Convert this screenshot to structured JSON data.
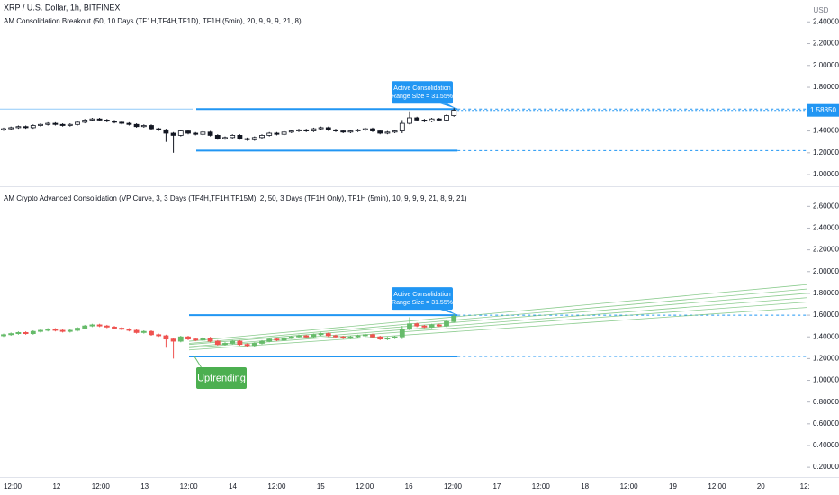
{
  "chart_data": [
    {
      "type": "candlestick",
      "title": "XRP / U.S. Dollar, 1h, BITFINEX",
      "indicator": "AM Consolidation Breakout (50, 10 Days (TF1H,TF4H,TF1D), TF1H (5min), 20, 9, 9, 9, 21, 8)",
      "currency": "USD",
      "open": [
        1.41,
        1.42,
        1.43,
        1.44,
        1.43,
        1.45,
        1.46,
        1.47,
        1.46,
        1.45,
        1.46,
        1.48,
        1.5,
        1.51,
        1.5,
        1.49,
        1.48,
        1.47,
        1.46,
        1.44,
        1.45,
        1.42,
        1.41,
        1.38,
        1.36,
        1.4,
        1.38,
        1.37,
        1.39,
        1.36,
        1.33,
        1.34,
        1.36,
        1.33,
        1.32,
        1.34,
        1.36,
        1.38,
        1.37,
        1.39,
        1.4,
        1.41,
        1.4,
        1.42,
        1.43,
        1.41,
        1.4,
        1.39,
        1.4,
        1.41,
        1.42,
        1.4,
        1.38,
        1.39,
        1.4,
        1.47,
        1.52,
        1.5,
        1.49,
        1.51,
        1.5,
        1.54
      ],
      "high": [
        1.43,
        1.44,
        1.45,
        1.45,
        1.46,
        1.47,
        1.48,
        1.48,
        1.47,
        1.47,
        1.49,
        1.51,
        1.52,
        1.52,
        1.51,
        1.5,
        1.49,
        1.48,
        1.47,
        1.46,
        1.46,
        1.43,
        1.42,
        1.39,
        1.41,
        1.41,
        1.39,
        1.4,
        1.4,
        1.37,
        1.35,
        1.37,
        1.37,
        1.34,
        1.35,
        1.37,
        1.39,
        1.39,
        1.4,
        1.41,
        1.42,
        1.42,
        1.43,
        1.44,
        1.44,
        1.42,
        1.41,
        1.41,
        1.42,
        1.43,
        1.43,
        1.41,
        1.4,
        1.41,
        1.5,
        1.58,
        1.53,
        1.51,
        1.52,
        1.52,
        1.55,
        1.61
      ],
      "low": [
        1.4,
        1.41,
        1.42,
        1.42,
        1.42,
        1.44,
        1.45,
        1.45,
        1.44,
        1.44,
        1.45,
        1.47,
        1.49,
        1.49,
        1.48,
        1.47,
        1.46,
        1.45,
        1.43,
        1.43,
        1.41,
        1.4,
        1.3,
        1.2,
        1.35,
        1.37,
        1.36,
        1.36,
        1.35,
        1.32,
        1.32,
        1.33,
        1.32,
        1.31,
        1.31,
        1.33,
        1.35,
        1.36,
        1.36,
        1.38,
        1.39,
        1.39,
        1.39,
        1.41,
        1.4,
        1.39,
        1.38,
        1.38,
        1.39,
        1.4,
        1.39,
        1.37,
        1.37,
        1.38,
        1.38,
        1.46,
        1.49,
        1.48,
        1.48,
        1.49,
        1.49,
        1.53
      ],
      "close": [
        1.42,
        1.43,
        1.44,
        1.43,
        1.45,
        1.46,
        1.47,
        1.46,
        1.45,
        1.46,
        1.48,
        1.5,
        1.51,
        1.5,
        1.49,
        1.48,
        1.47,
        1.46,
        1.44,
        1.45,
        1.42,
        1.41,
        1.38,
        1.36,
        1.4,
        1.38,
        1.37,
        1.39,
        1.36,
        1.33,
        1.34,
        1.36,
        1.33,
        1.32,
        1.34,
        1.36,
        1.38,
        1.37,
        1.39,
        1.4,
        1.41,
        1.4,
        1.42,
        1.43,
        1.41,
        1.4,
        1.39,
        1.4,
        1.41,
        1.42,
        1.4,
        1.38,
        1.39,
        1.4,
        1.47,
        1.52,
        1.5,
        1.49,
        1.51,
        1.5,
        1.54,
        1.59
      ],
      "up_color": "#ffffff",
      "down_color": "#131722",
      "ylim": [
        0.91,
        2.6
      ],
      "yticks": [
        {
          "value": 1.0,
          "label": "1.00000"
        },
        {
          "value": 1.2,
          "label": "1.20000"
        },
        {
          "value": 1.4,
          "label": "1.40000"
        },
        {
          "value": 1.8,
          "label": "1.80000"
        },
        {
          "value": 2.0,
          "label": "2.00000"
        },
        {
          "value": 2.2,
          "label": "2.20000"
        },
        {
          "value": 2.4,
          "label": "2.40000"
        }
      ],
      "last_price": {
        "value": 1.5885,
        "label": "1.58850"
      },
      "range_high": 1.6,
      "range_low": 1.22,
      "annotation": "Active Consolidation",
      "annotation_detail": "(Range Size = 31.55%)"
    },
    {
      "type": "candlestick",
      "indicator": "AM Crypto Advanced Consolidation (VP Curve, 3, 3 Days (TF4H,TF1H,TF15M), 2, 50, 3 Days (TF1H Only), TF1H (5min), 10, 9, 9, 9, 21, 8, 9, 21)",
      "up_color": "#66bb6a",
      "down_color": "#ef5350",
      "ylim": [
        0.11,
        2.76
      ],
      "yticks": [
        {
          "value": 0.2,
          "label": "0.20000"
        },
        {
          "value": 0.4,
          "label": "0.40000"
        },
        {
          "value": 0.6,
          "label": "0.60000"
        },
        {
          "value": 0.8,
          "label": "0.80000"
        },
        {
          "value": 1.0,
          "label": "1.00000"
        },
        {
          "value": 1.2,
          "label": "1.20000"
        },
        {
          "value": 1.4,
          "label": "1.40000"
        },
        {
          "value": 1.6,
          "label": "1.60000"
        },
        {
          "value": 1.8,
          "label": "1.80000"
        },
        {
          "value": 2.0,
          "label": "2.00000"
        },
        {
          "value": 2.2,
          "label": "2.20000"
        },
        {
          "value": 2.4,
          "label": "2.40000"
        },
        {
          "value": 2.6,
          "label": "2.60000"
        }
      ],
      "trend_lines": [
        [
          1.36,
          1.88
        ],
        [
          1.34,
          1.84
        ],
        [
          1.33,
          1.8
        ],
        [
          1.31,
          1.76
        ],
        [
          1.3,
          1.72
        ],
        [
          1.28,
          1.67
        ]
      ],
      "trend_color": "#66bb6a",
      "trend_label": "Uptrending",
      "annotation": "Active Consolidation",
      "annotation_detail": "(Range Size = 31.55%)"
    }
  ],
  "time_axis": [
    "12:00",
    "12",
    "12:00",
    "13",
    "12:00",
    "14",
    "12:00",
    "15",
    "12:00",
    "16",
    "12:00",
    "17",
    "12:00",
    "18",
    "12:00",
    "19",
    "12:00",
    "20",
    "12:"
  ]
}
